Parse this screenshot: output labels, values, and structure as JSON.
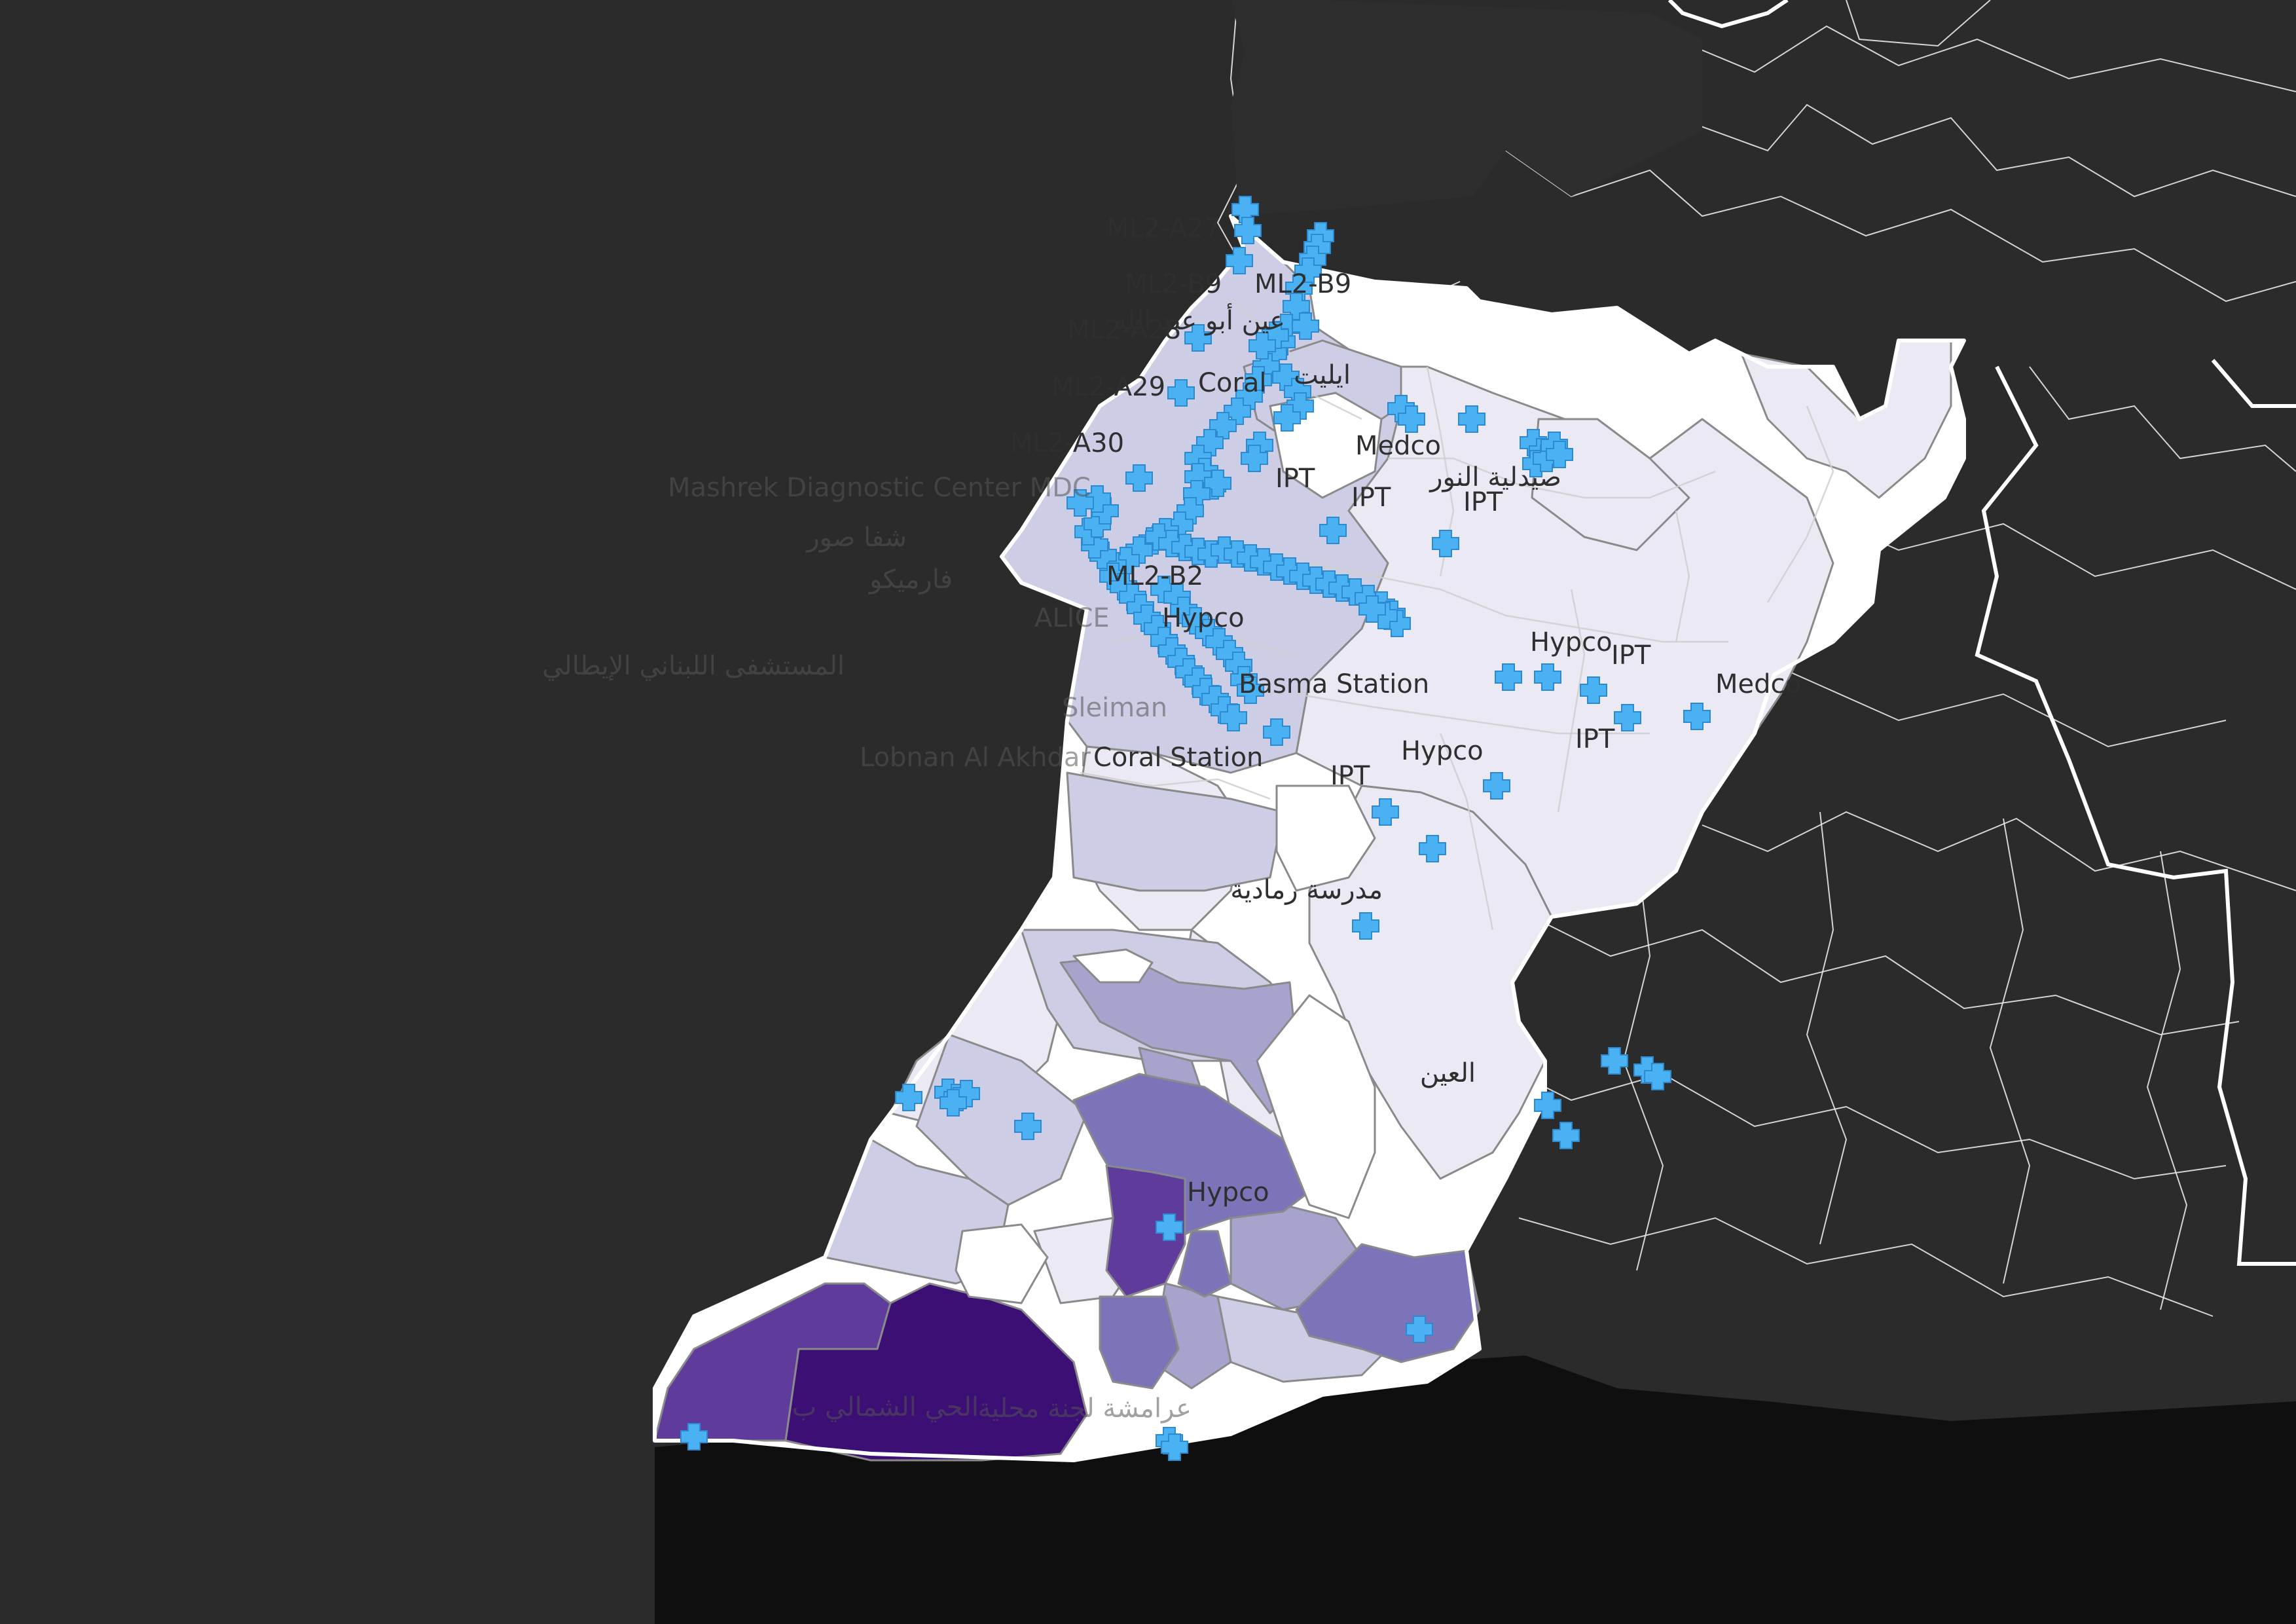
{
  "map": {
    "colors": {
      "background": "#2b2b2b",
      "south_land": "#0f0f10",
      "choropleth_scale": [
        "#ffffff",
        "#ebeaf4",
        "#cdcde5",
        "#a6a3cd",
        "#7c74b8",
        "#5f3b9c",
        "#3c0f75"
      ],
      "marker": "#4ab1f2",
      "border": "#ffffff"
    },
    "marker_icon": "plus-cross-icon",
    "labels": [
      {
        "text": "ML2-A27",
        "ghost": false
      },
      {
        "text": "ML2-B9",
        "ghost": false
      },
      {
        "text": "ML2-B9",
        "ghost": false
      },
      {
        "text": "عين أبو عبد الله",
        "ghost": false
      },
      {
        "text": "ML2-A28",
        "ghost": false
      },
      {
        "text": "ايليت",
        "ghost": false
      },
      {
        "text": "ML2-A29",
        "ghost": false
      },
      {
        "text": "Coral",
        "ghost": false
      },
      {
        "text": "ML2-A30",
        "ghost": false
      },
      {
        "text": "Medco",
        "ghost": false
      },
      {
        "text": "Mashrek Diagnostic Center MDC",
        "ghost": true
      },
      {
        "text": "IPT",
        "ghost": false
      },
      {
        "text": "IPT",
        "ghost": false
      },
      {
        "text": "IPT",
        "ghost": false
      },
      {
        "text": "صيدلية النور",
        "ghost": false
      },
      {
        "text": "شفا صور",
        "ghost": true
      },
      {
        "text": "فارميكو",
        "ghost": true
      },
      {
        "text": "ML2-B2",
        "ghost": false
      },
      {
        "text": "ALICE",
        "ghost": true
      },
      {
        "text": "Hypco",
        "ghost": false
      },
      {
        "text": "Hypco",
        "ghost": false
      },
      {
        "text": "IPT",
        "ghost": false
      },
      {
        "text": "المستشفى اللبناني الإيطالي",
        "ghost": true
      },
      {
        "text": "Basma Station",
        "ghost": false
      },
      {
        "text": "Medco",
        "ghost": false
      },
      {
        "text": "Sleiman",
        "ghost": true
      },
      {
        "text": "IPT",
        "ghost": false
      },
      {
        "text": "Hypco",
        "ghost": false
      },
      {
        "text": "Lobnan Al Akhdar",
        "ghost": true
      },
      {
        "text": "Coral Station",
        "ghost": false
      },
      {
        "text": "IPT",
        "ghost": false
      },
      {
        "text": "مدرسة رمادية",
        "ghost": false
      },
      {
        "text": "العين",
        "ghost": false
      },
      {
        "text": "Hypco",
        "ghost": false
      },
      {
        "text": "الحي الشمالي ب",
        "ghost": true
      },
      {
        "text": "عرامشة لجنة محلية",
        "ghost": true
      }
    ]
  }
}
